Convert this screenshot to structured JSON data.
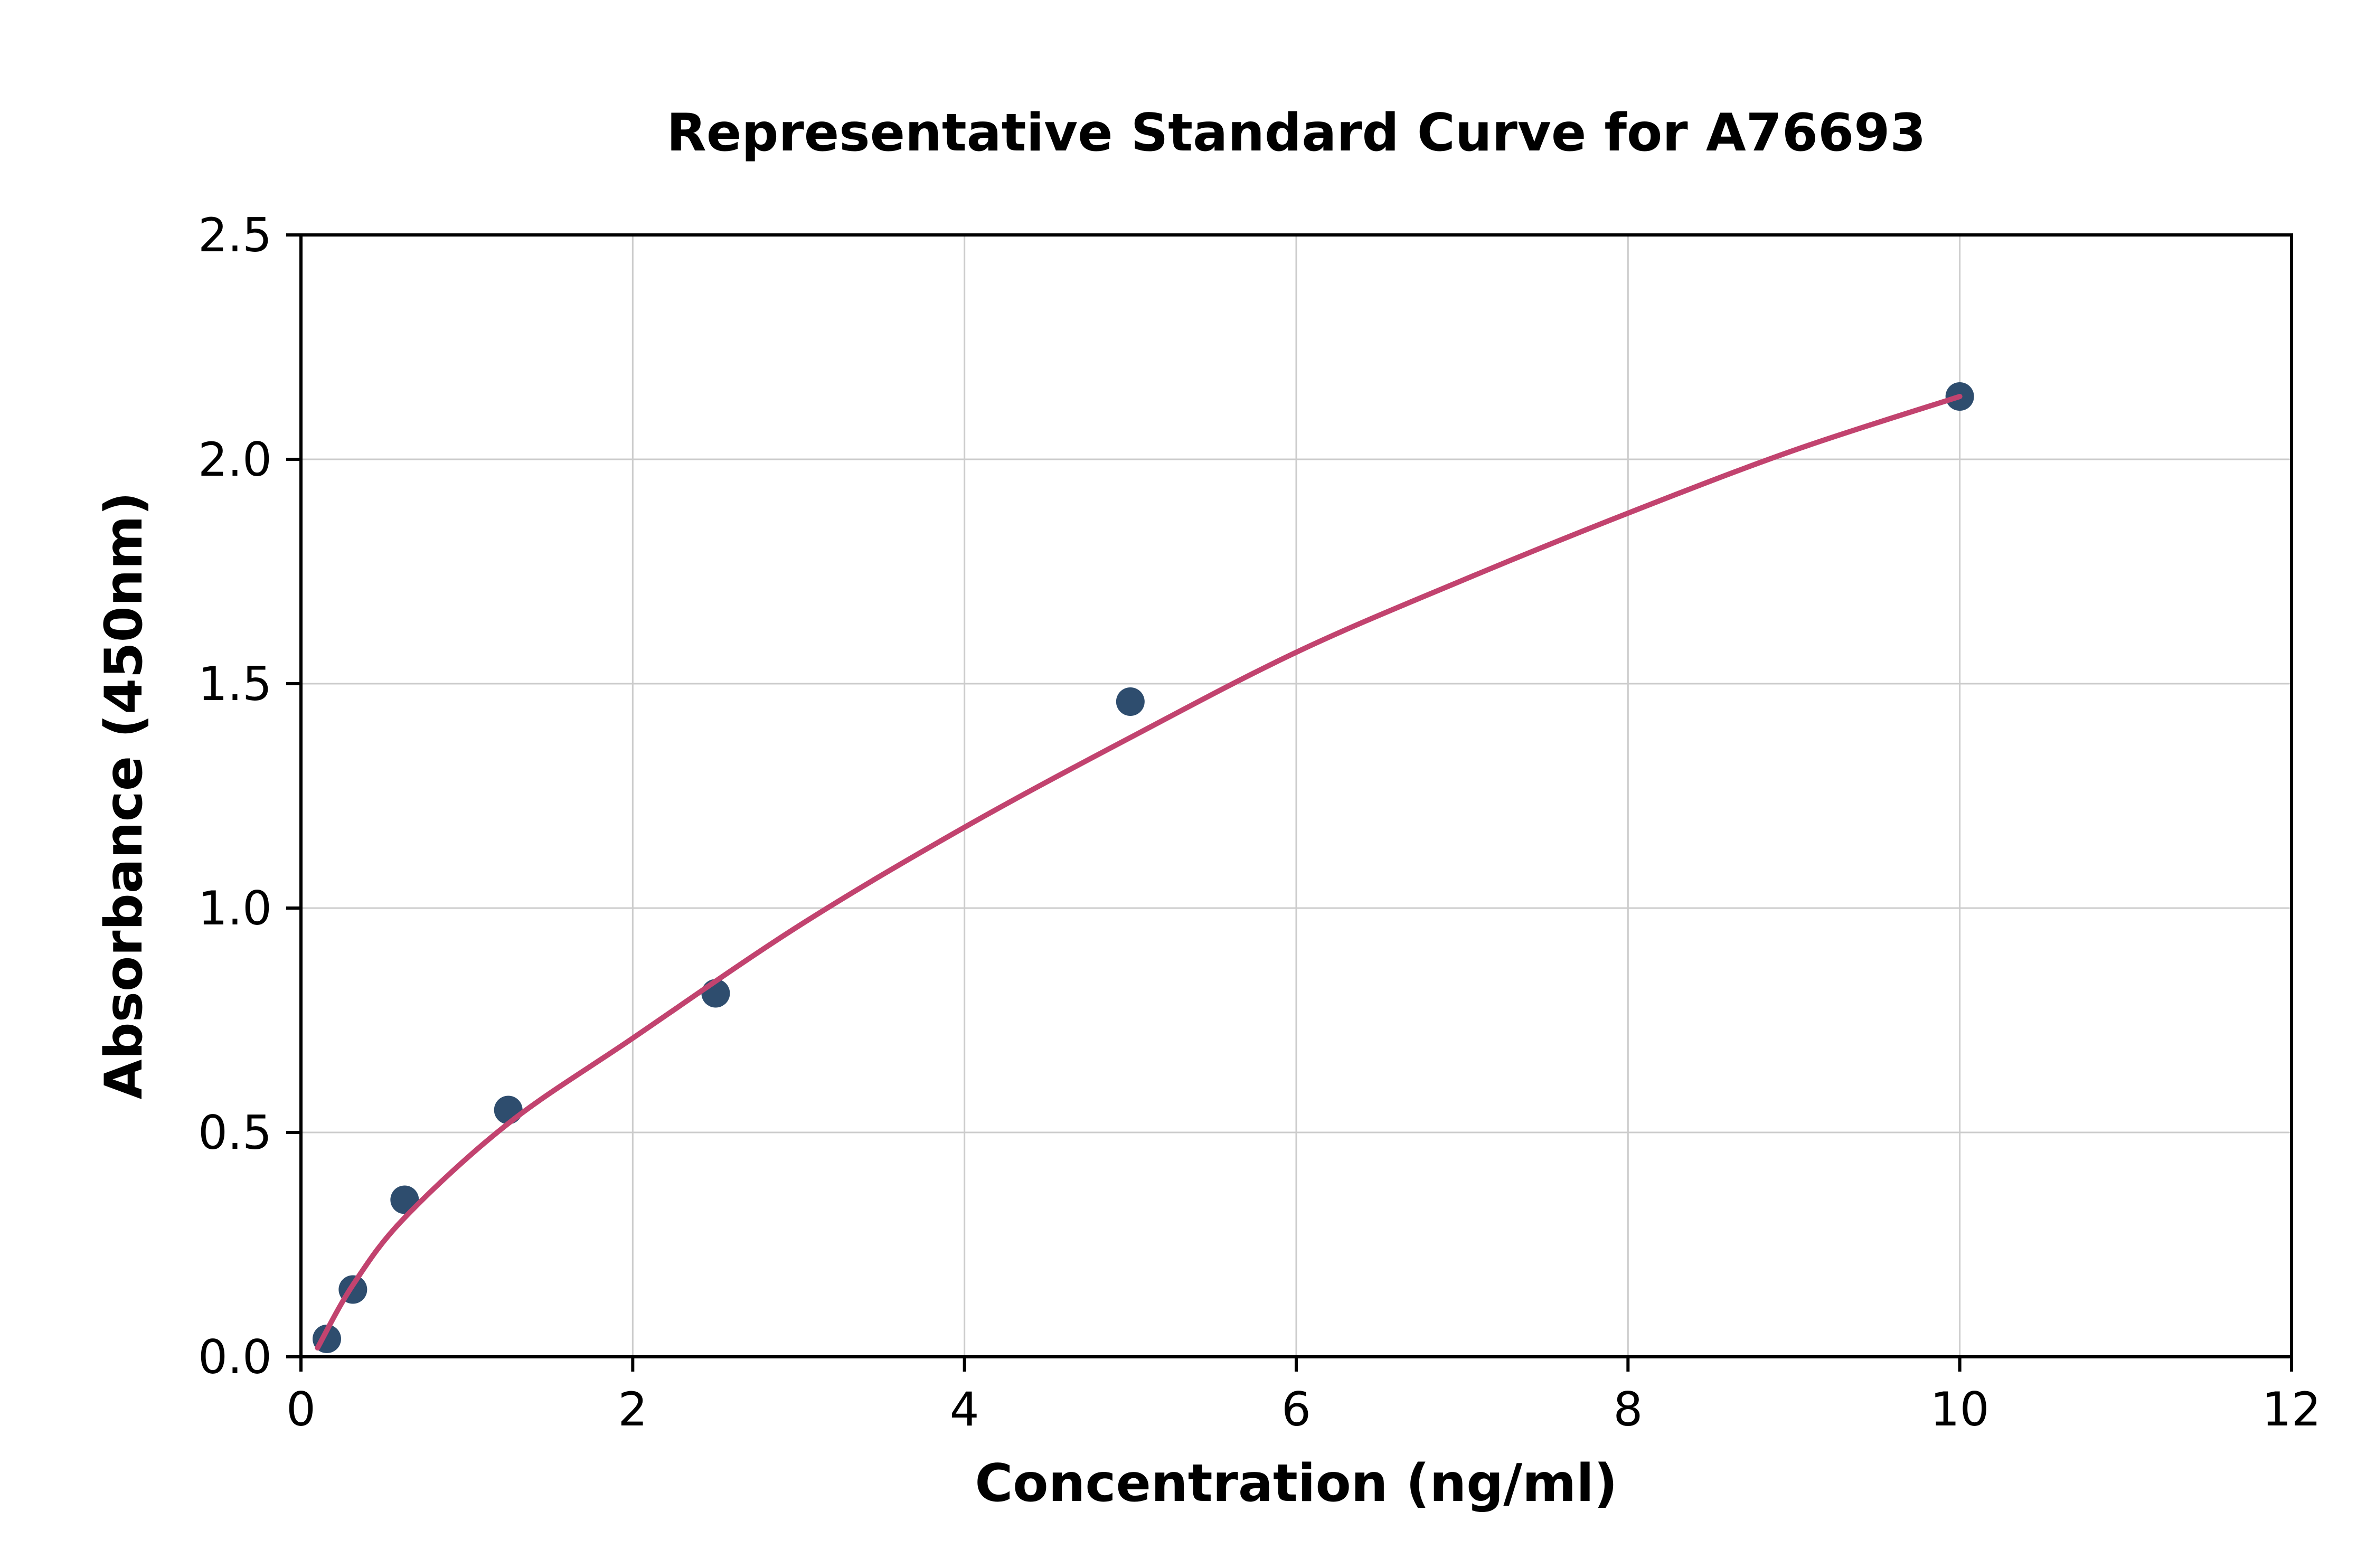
{
  "chart_data": {
    "type": "scatter",
    "title": "Representative Standard Curve for A76693",
    "xlabel": "Concentration (ng/ml)",
    "ylabel": "Absorbance (450nm)",
    "xlim": [
      0,
      12
    ],
    "ylim": [
      0,
      2.5
    ],
    "x_ticks": [
      0,
      2,
      4,
      6,
      8,
      10,
      12
    ],
    "x_tick_labels": [
      "0",
      "2",
      "4",
      "6",
      "8",
      "10",
      "12"
    ],
    "y_ticks": [
      0,
      0.5,
      1,
      1.5,
      2,
      2.5
    ],
    "y_tick_labels": [
      "0.0",
      "0.5",
      "1.0",
      "1.5",
      "2.0",
      "2.5"
    ],
    "grid": true,
    "grid_color": "#cccccc",
    "axis_color": "#000000",
    "background": "#ffffff",
    "legend": "none",
    "series": [
      {
        "name": "standard-points",
        "type": "scatter",
        "color": "#2e4d6e",
        "points": [
          [
            0.156,
            0.04
          ],
          [
            0.313,
            0.15
          ],
          [
            0.625,
            0.35
          ],
          [
            1.25,
            0.55
          ],
          [
            2.5,
            0.81
          ],
          [
            5.0,
            1.46
          ],
          [
            10.0,
            2.14
          ]
        ]
      },
      {
        "name": "fitted-curve",
        "type": "line",
        "color": "#c2436f",
        "points": [
          [
            0.1,
            0.02
          ],
          [
            0.313,
            0.16
          ],
          [
            0.625,
            0.31
          ],
          [
            1.25,
            0.52
          ],
          [
            2.0,
            0.71
          ],
          [
            3.0,
            0.96
          ],
          [
            4.0,
            1.18
          ],
          [
            5.0,
            1.38
          ],
          [
            6.0,
            1.57
          ],
          [
            7.0,
            1.73
          ],
          [
            8.0,
            1.88
          ],
          [
            9.0,
            2.02
          ],
          [
            10.0,
            2.14
          ]
        ]
      }
    ]
  }
}
